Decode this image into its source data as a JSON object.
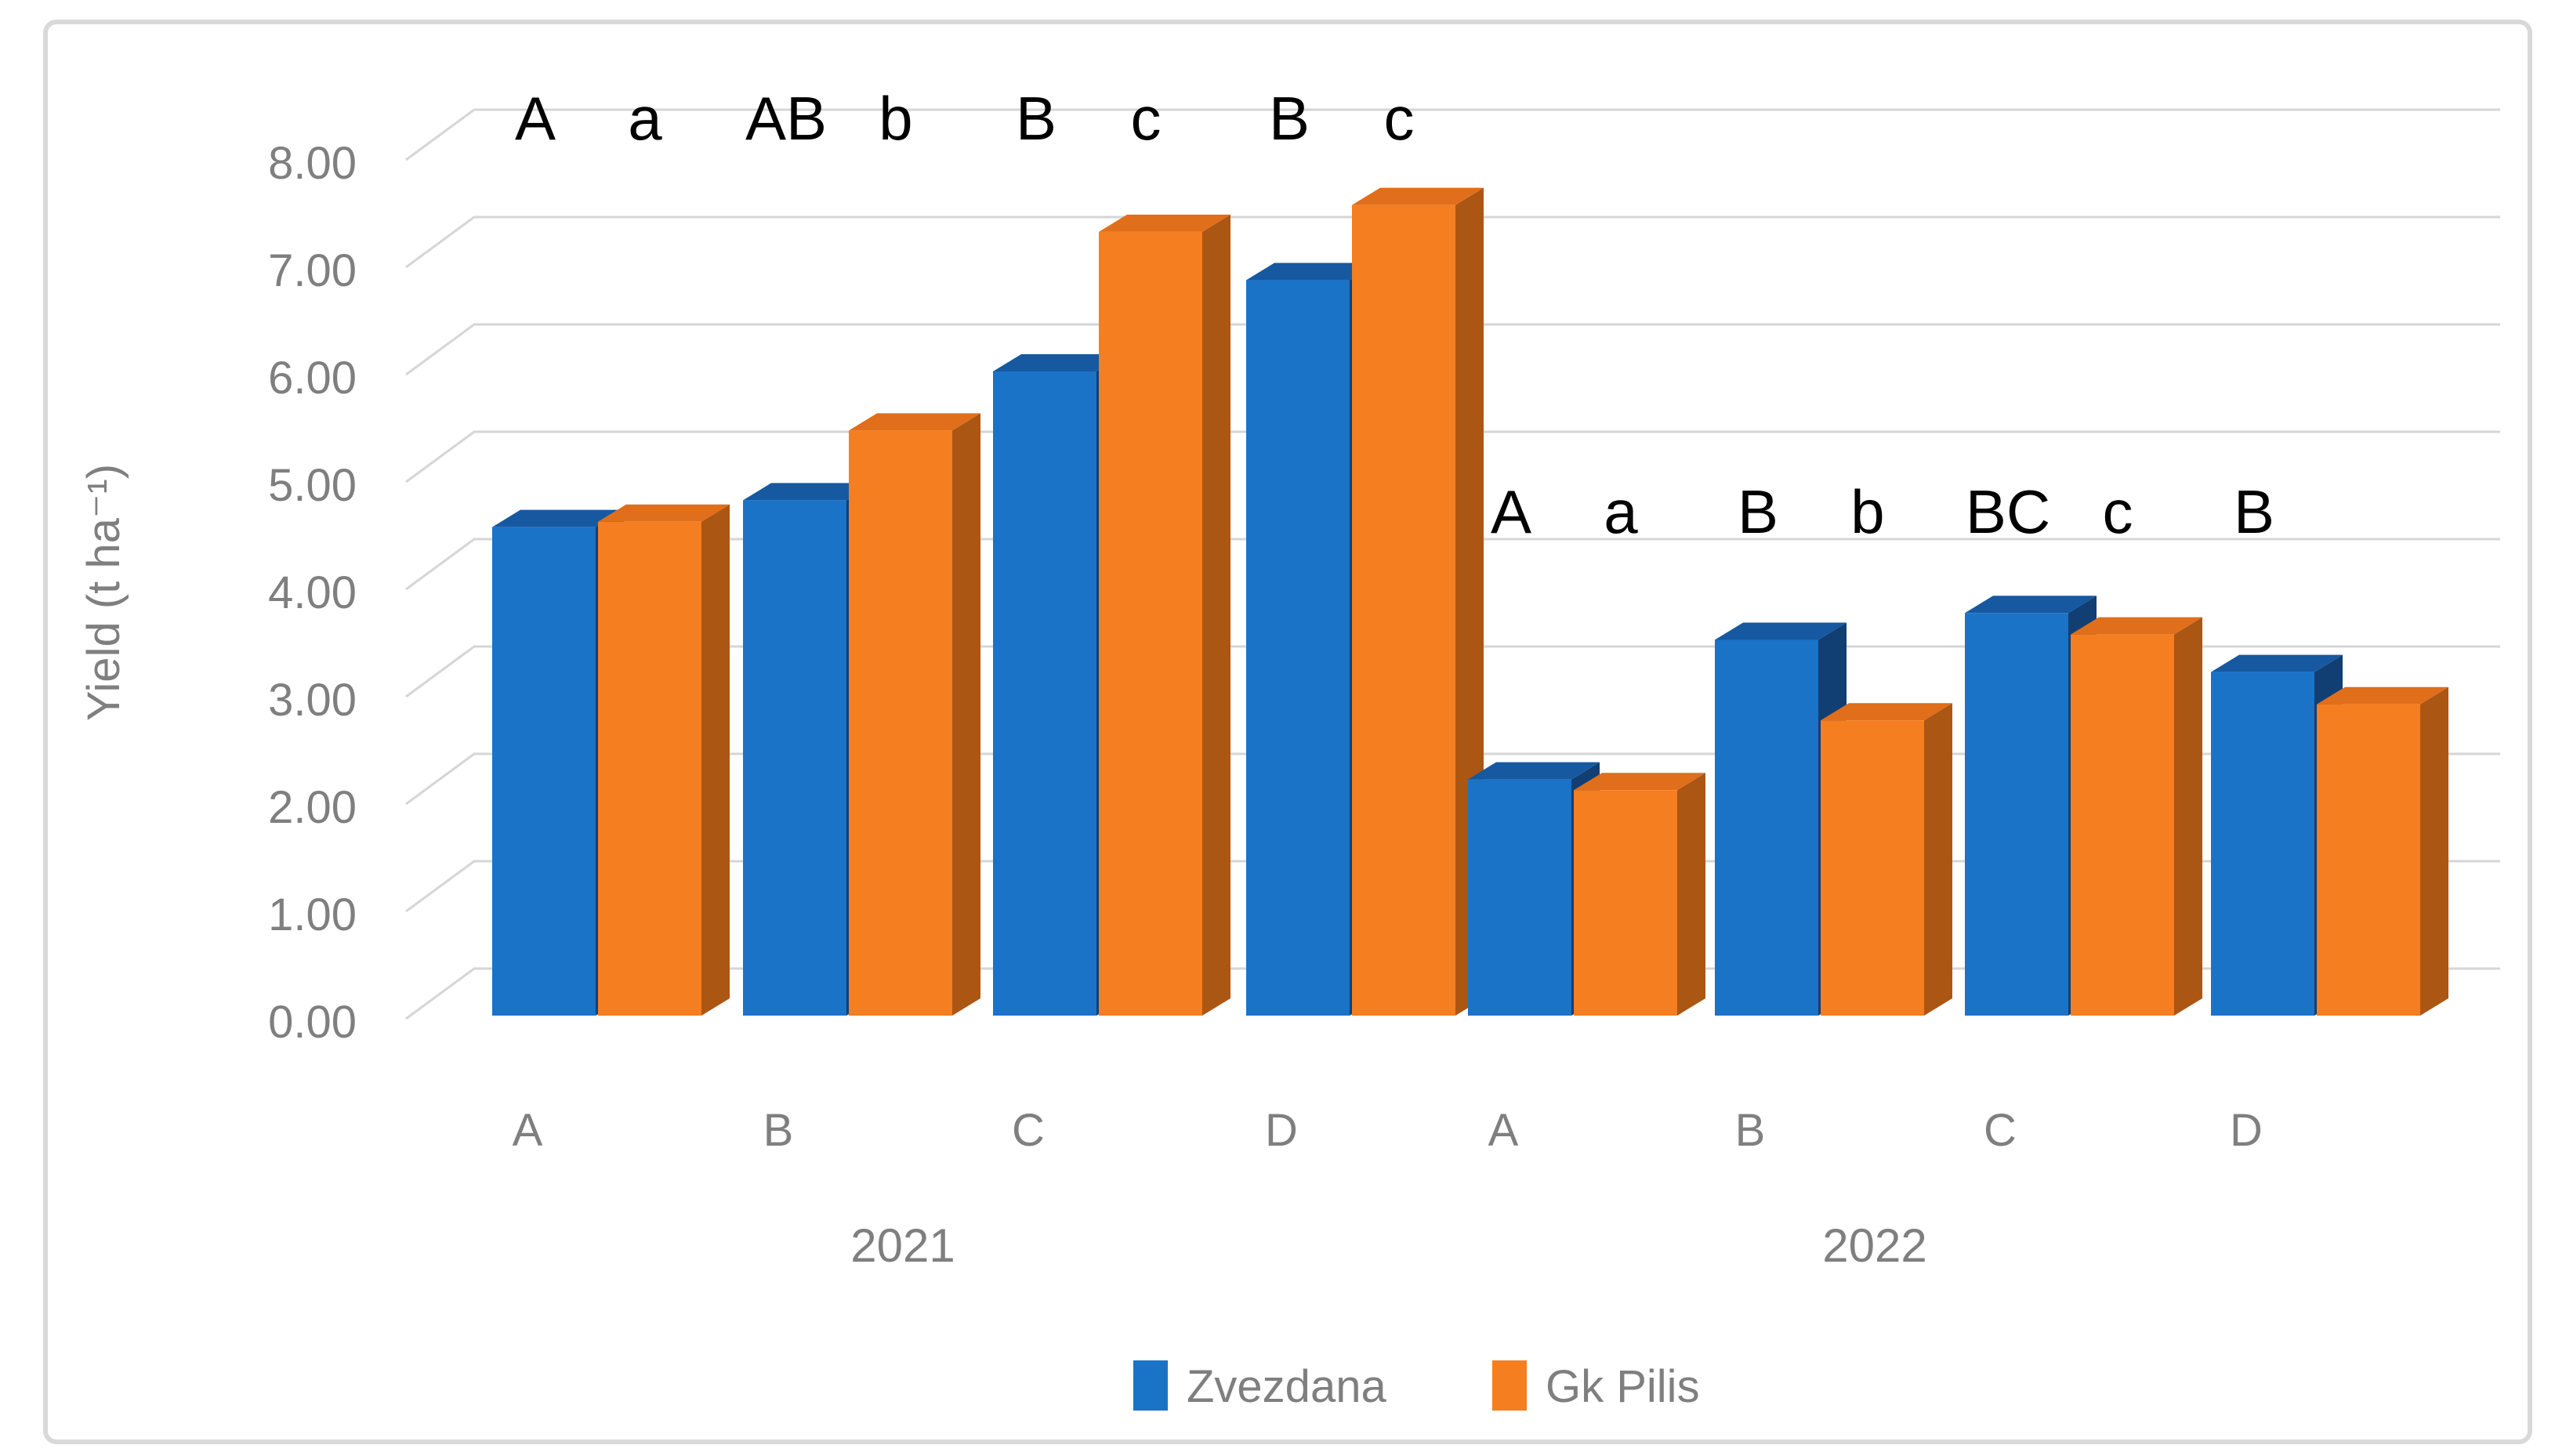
{
  "chart_data": {
    "type": "bar",
    "pseudo_3d": true,
    "title": "",
    "ylabel": "Yield (t ha⁻¹)",
    "ylim": [
      0,
      8
    ],
    "y_tick_step": 1,
    "y_tick_labels": [
      "0.00",
      "1.00",
      "2.00",
      "3.00",
      "4.00",
      "5.00",
      "6.00",
      "7.00",
      "8.00"
    ],
    "grid": true,
    "legend_position": "bottom",
    "categories": [
      "A",
      "B",
      "C",
      "D",
      "A",
      "B",
      "C",
      "D"
    ],
    "year_groups": [
      {
        "label": "2021",
        "category_indexes": [
          0,
          1,
          2,
          3
        ]
      },
      {
        "label": "2022",
        "category_indexes": [
          4,
          5,
          6,
          7
        ]
      }
    ],
    "series": [
      {
        "name": "Zvezdana",
        "color": "#1b73c7",
        "color_top": "#1659a0",
        "color_side": "#123f73",
        "values": [
          4.55,
          4.8,
          6.0,
          6.85,
          2.2,
          3.5,
          3.75,
          3.2
        ]
      },
      {
        "name": "Gk Pilis",
        "color": "#f57e20",
        "color_top": "#e06e1b",
        "color_side": "#ac5614",
        "values": [
          4.6,
          5.45,
          7.3,
          7.55,
          2.1,
          2.75,
          3.55,
          2.9
        ]
      }
    ],
    "significance_labels": [
      {
        "upper": "A",
        "lower": "a"
      },
      {
        "upper": "AB",
        "lower": "b"
      },
      {
        "upper": "B",
        "lower": "c"
      },
      {
        "upper": "B",
        "lower": "c"
      },
      {
        "upper": "A",
        "lower": "a"
      },
      {
        "upper": "B",
        "lower": "b"
      },
      {
        "upper": "BC",
        "lower": "c"
      },
      {
        "upper": "B",
        "lower": ""
      }
    ],
    "colors": {
      "gridline": "#d6d6d6",
      "axis_text": "#7f7f7f",
      "sig_text": "#000000",
      "frame_border": "#d9d9d9",
      "background": "#ffffff"
    }
  }
}
